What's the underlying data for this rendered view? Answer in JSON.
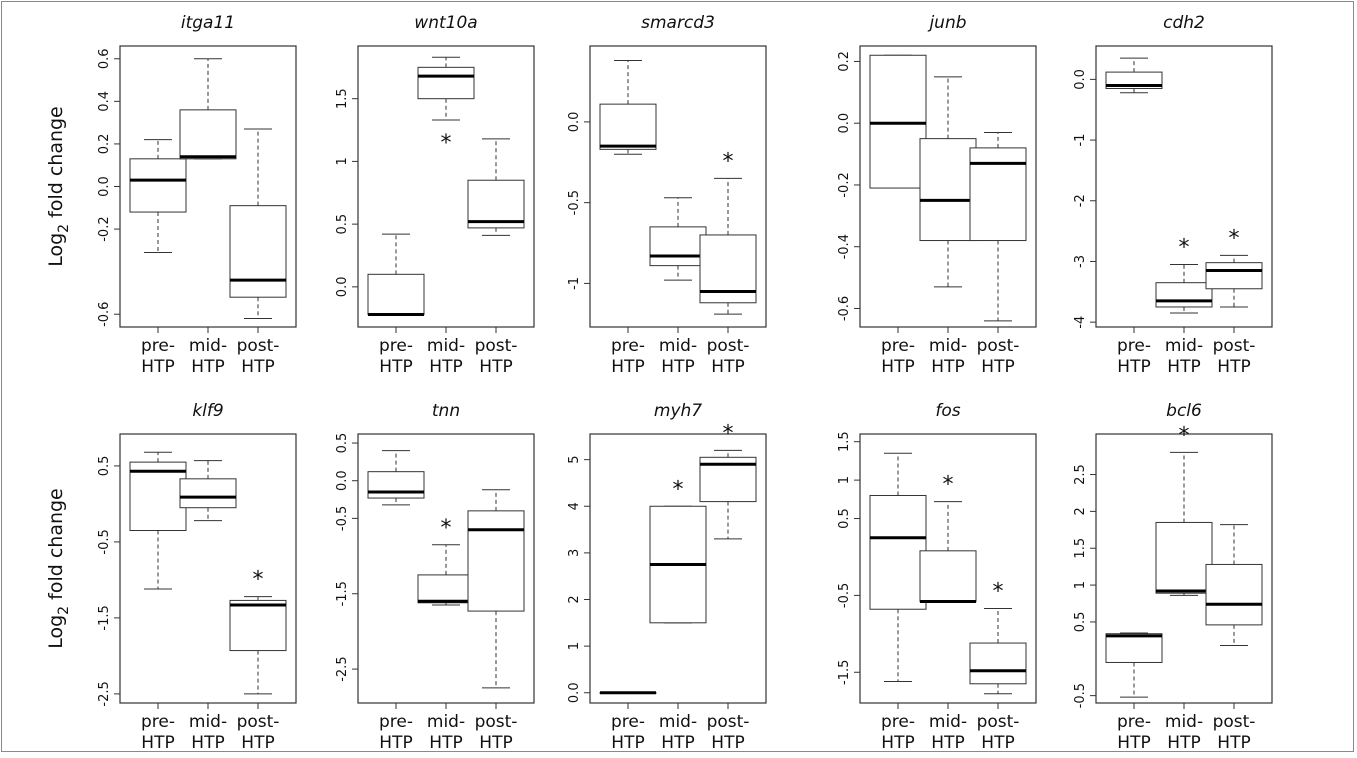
{
  "figure": {
    "ylabel_main": "Log",
    "ylabel_sub": "2",
    "ylabel_rest": " fold change"
  },
  "chart_data": [
    {
      "type": "box",
      "title": "itga11",
      "ylim": [
        -0.66,
        0.66
      ],
      "yticks": [
        -0.6,
        -0.2,
        0.0,
        0.2,
        0.4,
        0.6
      ],
      "categories": [
        "pre-HTP",
        "mid-HTP",
        "post-HTP"
      ],
      "boxes": [
        {
          "whislo": -0.31,
          "q1": -0.12,
          "med": 0.03,
          "q3": 0.13,
          "whishi": 0.22,
          "star": false
        },
        {
          "whislo": 0.13,
          "q1": 0.13,
          "med": 0.14,
          "q3": 0.36,
          "whishi": 0.6,
          "star": false
        },
        {
          "whislo": -0.62,
          "q1": -0.52,
          "med": -0.44,
          "q3": -0.09,
          "whishi": 0.27,
          "star": false
        }
      ]
    },
    {
      "type": "box",
      "title": "wnt10a",
      "ylim": [
        -0.32,
        1.92
      ],
      "yticks": [
        0.0,
        0.5,
        1.0,
        1.5
      ],
      "categories": [
        "pre-HTP",
        "mid-HTP",
        "post-HTP"
      ],
      "boxes": [
        {
          "whislo": -0.22,
          "q1": -0.22,
          "med": -0.22,
          "q3": 0.1,
          "whishi": 0.42,
          "star": false
        },
        {
          "whislo": 1.33,
          "q1": 1.5,
          "med": 1.68,
          "q3": 1.75,
          "whishi": 1.83,
          "star": true
        },
        {
          "whislo": 0.41,
          "q1": 0.47,
          "med": 0.52,
          "q3": 0.85,
          "whishi": 1.18,
          "star": false
        }
      ]
    },
    {
      "type": "box",
      "title": "smarcd3",
      "ylim": [
        -1.27,
        0.47
      ],
      "yticks": [
        -1.0,
        -0.5,
        0.0
      ],
      "categories": [
        "pre-HTP",
        "mid-HTP",
        "post-HTP"
      ],
      "boxes": [
        {
          "whislo": -0.2,
          "q1": -0.17,
          "med": -0.15,
          "q3": 0.11,
          "whishi": 0.38,
          "star": false
        },
        {
          "whislo": -0.98,
          "q1": -0.89,
          "med": -0.83,
          "q3": -0.65,
          "whishi": -0.47,
          "star": false
        },
        {
          "whislo": -1.19,
          "q1": -1.12,
          "med": -1.05,
          "q3": -0.7,
          "whishi": -0.35,
          "star": true
        }
      ]
    },
    {
      "type": "box",
      "title": "junb",
      "ylim": [
        -0.66,
        0.25
      ],
      "yticks": [
        -0.6,
        -0.4,
        -0.2,
        0.0,
        0.2
      ],
      "categories": [
        "pre-HTP",
        "mid-HTP",
        "post-HTP"
      ],
      "boxes": [
        {
          "whislo": -0.21,
          "q1": -0.21,
          "med": 0.0,
          "q3": 0.22,
          "whishi": 0.22,
          "star": false
        },
        {
          "whislo": -0.53,
          "q1": -0.38,
          "med": -0.25,
          "q3": -0.05,
          "whishi": 0.15,
          "star": false
        },
        {
          "whislo": -0.64,
          "q1": -0.38,
          "med": -0.13,
          "q3": -0.08,
          "whishi": -0.03,
          "star": false
        }
      ]
    },
    {
      "type": "box",
      "title": "cdh2",
      "ylim": [
        -4.08,
        0.55
      ],
      "yticks": [
        -4,
        -3,
        -2,
        -1,
        0
      ],
      "categories": [
        "pre-HTP",
        "mid-HTP",
        "post-HTP"
      ],
      "boxes": [
        {
          "whislo": -0.22,
          "q1": -0.15,
          "med": -0.1,
          "q3": 0.12,
          "whishi": 0.35,
          "star": false
        },
        {
          "whislo": -3.85,
          "q1": -3.75,
          "med": -3.65,
          "q3": -3.35,
          "whishi": -3.05,
          "star": true
        },
        {
          "whislo": -3.75,
          "q1": -3.45,
          "med": -3.15,
          "q3": -3.02,
          "whishi": -2.9,
          "star": true
        }
      ]
    },
    {
      "type": "box",
      "title": "klf9",
      "ylim": [
        -2.62,
        0.92
      ],
      "yticks": [
        -2.5,
        -1.5,
        -0.5,
        0.5
      ],
      "categories": [
        "pre-HTP",
        "mid-HTP",
        "post-HTP"
      ],
      "boxes": [
        {
          "whislo": -1.12,
          "q1": -0.35,
          "med": 0.43,
          "q3": 0.55,
          "whishi": 0.68,
          "star": false
        },
        {
          "whislo": -0.22,
          "q1": -0.05,
          "med": 0.09,
          "q3": 0.33,
          "whishi": 0.57,
          "star": false
        },
        {
          "whislo": -2.5,
          "q1": -1.93,
          "med": -1.33,
          "q3": -1.27,
          "whishi": -1.22,
          "star": true
        }
      ]
    },
    {
      "type": "box",
      "title": "tnn",
      "ylim": [
        -2.95,
        0.62
      ],
      "yticks": [
        -2.5,
        -1.5,
        -0.5,
        0.0,
        0.5
      ],
      "categories": [
        "pre-HTP",
        "mid-HTP",
        "post-HTP"
      ],
      "boxes": [
        {
          "whislo": -0.32,
          "q1": -0.23,
          "med": -0.15,
          "q3": 0.12,
          "whishi": 0.4,
          "star": false
        },
        {
          "whislo": -1.65,
          "q1": -1.62,
          "med": -1.6,
          "q3": -1.25,
          "whishi": -0.85,
          "star": true
        },
        {
          "whislo": -2.75,
          "q1": -1.73,
          "med": -0.65,
          "q3": -0.4,
          "whishi": -0.12,
          "star": false
        }
      ]
    },
    {
      "type": "box",
      "title": "myh7",
      "ylim": [
        -0.22,
        5.55
      ],
      "yticks": [
        0,
        1,
        2,
        3,
        4,
        5
      ],
      "categories": [
        "pre-HTP",
        "mid-HTP",
        "post-HTP"
      ],
      "boxes": [
        {
          "whislo": 0.0,
          "q1": 0.0,
          "med": 0.0,
          "q3": 0.0,
          "whishi": 0.0,
          "star": false
        },
        {
          "whislo": 1.5,
          "q1": 1.5,
          "med": 2.75,
          "q3": 4.0,
          "whishi": 4.0,
          "star": true
        },
        {
          "whislo": 3.3,
          "q1": 4.1,
          "med": 4.9,
          "q3": 5.05,
          "whishi": 5.2,
          "star": true
        }
      ]
    },
    {
      "type": "box",
      "title": "fos",
      "ylim": [
        -1.9,
        1.6
      ],
      "yticks": [
        -1.5,
        -0.5,
        0.5,
        1.0,
        1.5
      ],
      "categories": [
        "pre-HTP",
        "mid-HTP",
        "post-HTP"
      ],
      "boxes": [
        {
          "whislo": -1.62,
          "q1": -0.68,
          "med": 0.25,
          "q3": 0.8,
          "whishi": 1.35,
          "star": false
        },
        {
          "whislo": -0.58,
          "q1": -0.58,
          "med": -0.58,
          "q3": 0.08,
          "whishi": 0.72,
          "star": true
        },
        {
          "whislo": -1.78,
          "q1": -1.65,
          "med": -1.48,
          "q3": -1.12,
          "whishi": -0.67,
          "star": true
        }
      ]
    },
    {
      "type": "box",
      "title": "bcl6",
      "ylim": [
        -0.6,
        3.05
      ],
      "yticks": [
        -0.5,
        0.5,
        1.0,
        1.5,
        2.0,
        2.5
      ],
      "categories": [
        "pre-HTP",
        "mid-HTP",
        "post-HTP"
      ],
      "boxes": [
        {
          "whislo": -0.52,
          "q1": -0.05,
          "med": 0.31,
          "q3": 0.34,
          "whishi": 0.35,
          "star": false
        },
        {
          "whislo": 0.86,
          "q1": 0.89,
          "med": 0.92,
          "q3": 1.85,
          "whishi": 2.8,
          "star": true
        },
        {
          "whislo": 0.18,
          "q1": 0.46,
          "med": 0.74,
          "q3": 1.28,
          "whishi": 1.82,
          "star": false
        }
      ]
    }
  ]
}
